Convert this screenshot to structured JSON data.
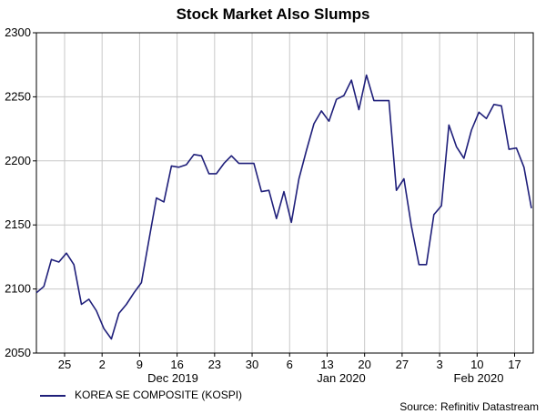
{
  "chart_data": {
    "type": "line",
    "title": "Stock Market Also Slumps",
    "xlabel": "",
    "ylabel": "",
    "ylim": [
      2050,
      2300
    ],
    "y_ticks": [
      2050,
      2100,
      2150,
      2200,
      2250,
      2300
    ],
    "x_tick_labels": [
      "25",
      "2",
      "9",
      "16",
      "23",
      "30",
      "6",
      "13",
      "20",
      "27",
      "3",
      "10",
      "17"
    ],
    "x_month_labels": [
      "Dec 2019",
      "Jan 2020",
      "Feb 2020"
    ],
    "grid": true,
    "legend_position": "bottom-left",
    "source": "Source: Refinitiv Datastream",
    "series": [
      {
        "name": "KOREA SE COMPOSITE (KOSPI)",
        "color": "#1f1f7a",
        "values": [
          2097,
          2102,
          2123,
          2121,
          2128,
          2119,
          2088,
          2092,
          2083,
          2069,
          2061,
          2081,
          2088,
          2097,
          2105,
          2138,
          2171,
          2168,
          2196,
          2195,
          2197,
          2205,
          2204,
          2190,
          2190,
          2198,
          2204,
          2198,
          2198,
          2198,
          2176,
          2177,
          2155,
          2176,
          2152,
          2186,
          2208,
          2229,
          2239,
          2231,
          2248,
          2251,
          2263,
          2240,
          2267,
          2247,
          2247,
          2247,
          2177,
          2186,
          2149,
          2119,
          2119,
          2158,
          2165,
          2228,
          2211,
          2202,
          2224,
          2238,
          2233,
          2244,
          2243,
          2209,
          2210,
          2195,
          2163
        ]
      }
    ]
  }
}
